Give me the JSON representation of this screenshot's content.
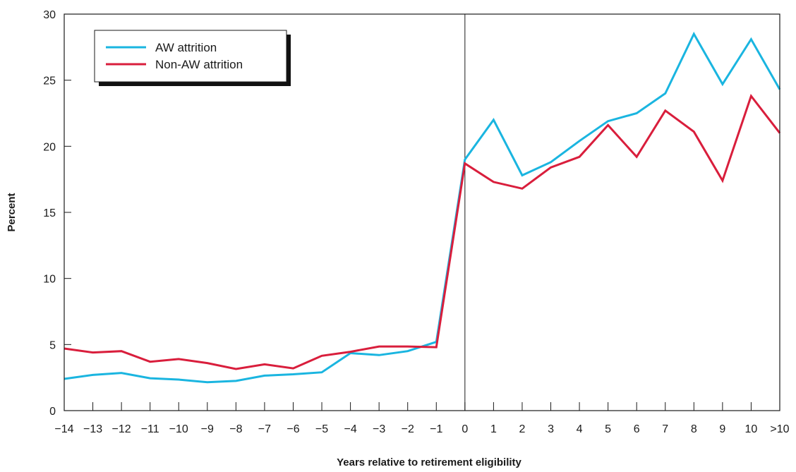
{
  "chart_data": {
    "type": "line",
    "title": "",
    "xlabel": "Years relative to retirement eligibility",
    "ylabel": "Percent",
    "categories": [
      "−14",
      "−13",
      "−12",
      "−11",
      "−10",
      "−9",
      "−8",
      "−7",
      "−6",
      "−5",
      "−4",
      "−3",
      "−2",
      "−1",
      "0",
      "1",
      "2",
      "3",
      "4",
      "5",
      "6",
      "7",
      "8",
      "9",
      "10",
      ">10"
    ],
    "ylim": [
      0,
      30
    ],
    "yticks": [
      "0",
      "5",
      "10",
      "15",
      "20",
      "25",
      "30"
    ],
    "legend_position": "top-left",
    "grid": false,
    "reference_line_at": "0",
    "series": [
      {
        "name": "AW attrition",
        "color": "#1ab5e0",
        "values": [
          2.4,
          2.7,
          2.85,
          2.45,
          2.35,
          2.15,
          2.25,
          2.65,
          2.75,
          2.9,
          4.35,
          4.2,
          4.5,
          5.2,
          19.0,
          22.0,
          17.8,
          18.8,
          20.4,
          21.9,
          22.5,
          24.0,
          28.5,
          24.7,
          28.1,
          24.3
        ]
      },
      {
        "name": "Non-AW attrition",
        "color": "#d91e3c",
        "values": [
          4.7,
          4.4,
          4.5,
          3.7,
          3.9,
          3.6,
          3.15,
          3.5,
          3.2,
          4.15,
          4.45,
          4.85,
          4.85,
          4.8,
          18.7,
          17.3,
          16.8,
          18.4,
          19.2,
          21.6,
          19.2,
          22.7,
          21.1,
          17.4,
          23.8,
          21.0
        ]
      }
    ]
  }
}
